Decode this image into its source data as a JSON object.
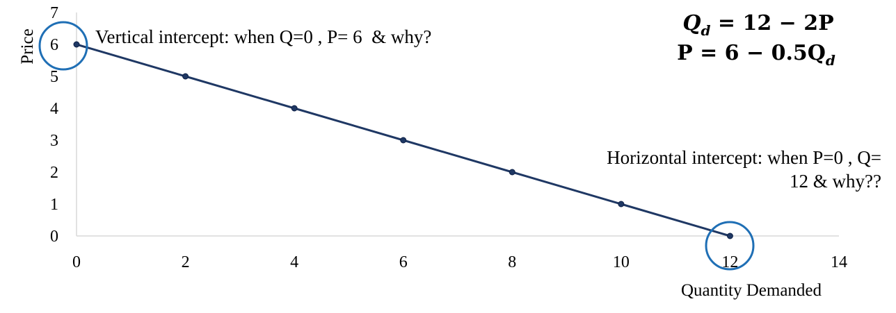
{
  "chart_data": {
    "type": "line",
    "xlabel": "Quantity Demanded",
    "ylabel": "Price",
    "xlim": [
      0,
      14
    ],
    "ylim": [
      0,
      7
    ],
    "x_ticks": [
      "0",
      "2",
      "4",
      "6",
      "8",
      "10",
      "12",
      "14"
    ],
    "y_ticks": [
      "0",
      "1",
      "2",
      "3",
      "4",
      "5",
      "6",
      "7"
    ],
    "series": [
      {
        "x": [
          0,
          2,
          4,
          6,
          8,
          10,
          12
        ],
        "y": [
          6,
          5,
          4,
          3,
          2,
          1,
          0
        ]
      }
    ],
    "grid": false,
    "colors": {
      "line": "#1f3864",
      "marker": "#1f3864",
      "circle": "#1f6fb5",
      "axis": "#d9d9d9"
    },
    "annotations": {
      "vertical_intercept": "Vertical intercept: when Q=0 , P= 6  & why?",
      "horizontal_intercept_line1": "Horizontal intercept: when P=0 , Q=",
      "horizontal_intercept_line2": "12 & why??"
    },
    "equations": {
      "eq1": {
        "lhs": "Q",
        "lhs_sub": "d",
        "rhs": " = 12 − 2P"
      },
      "eq2": {
        "lhs": "P = 6 − 0.5Q",
        "lhs_sub": "d"
      }
    }
  }
}
